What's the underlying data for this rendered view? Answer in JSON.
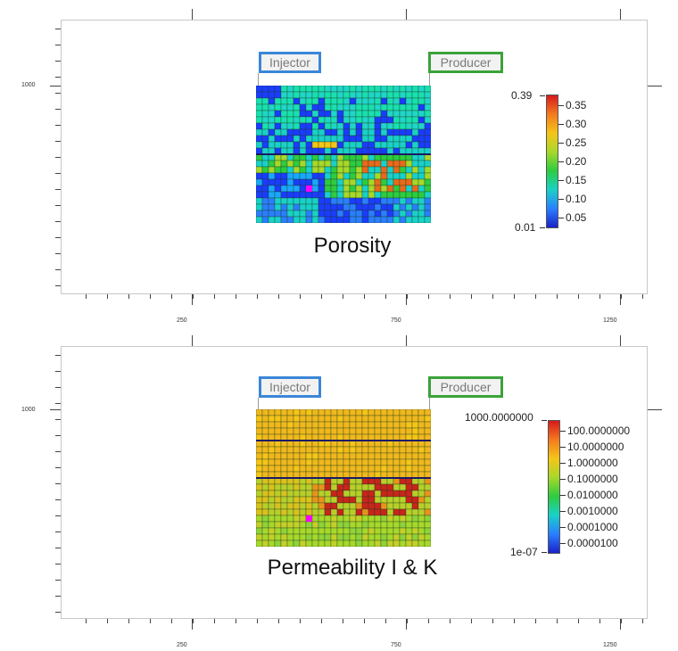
{
  "axes": {
    "x_ticks": [
      "250",
      "750",
      "1250"
    ],
    "y_tick": "1000"
  },
  "wells": {
    "injector": "Injector",
    "producer": "Producer"
  },
  "panels": [
    {
      "caption": "Porosity",
      "colorbar": {
        "max_label": "0.39",
        "min_label": "0.01",
        "tick_labels": [
          "0.35",
          "0.30",
          "0.25",
          "0.20",
          "0.15",
          "0.10",
          "0.05"
        ],
        "colors": [
          "#d7191c",
          "#f47a1f",
          "#f5c518",
          "#a7d82b",
          "#2ecc40",
          "#19d1c8",
          "#2a7fff",
          "#1a22c8"
        ]
      }
    },
    {
      "caption": "Permeability I & K",
      "colorbar": {
        "max_label": "1000.0000000",
        "min_label": "1e-07",
        "tick_labels": [
          "100.0000000",
          "10.0000000",
          "1.0000000",
          "0.1000000",
          "0.0100000",
          "0.0010000",
          "0.0001000",
          "0.0000100"
        ],
        "colors": [
          "#d7191c",
          "#f47a1f",
          "#f5c518",
          "#a7d82b",
          "#2ecc40",
          "#19d1c8",
          "#2a7fff",
          "#1a22c8"
        ]
      }
    }
  ]
}
